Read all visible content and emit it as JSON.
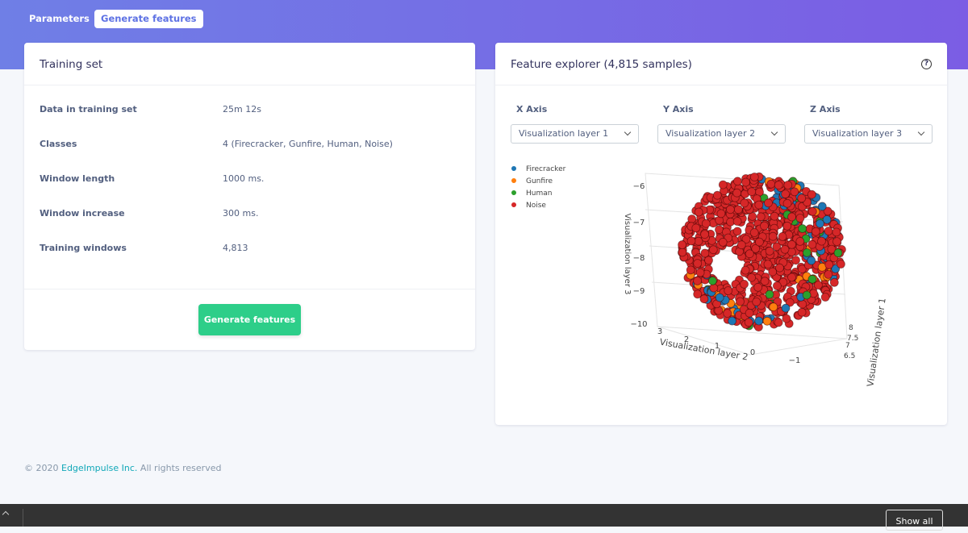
{
  "tabs": [
    "Parameters",
    "Generate features"
  ],
  "training_set": {
    "title": "Training set",
    "rows": [
      [
        "Data in training set",
        "25m 12s"
      ],
      [
        "Classes",
        "4 (Firecracker, Gunfire, Human, Noise)"
      ],
      [
        "Window length",
        "1000 ms."
      ],
      [
        "Window increase",
        "300 ms."
      ],
      [
        "Training windows",
        "4,813"
      ]
    ],
    "button": "Generate features"
  },
  "feature_explorer": {
    "title": "Feature explorer (4,815 samples)",
    "help": "?",
    "axes": [
      {
        "label": "X Axis",
        "selected": "Visualization layer 1"
      },
      {
        "label": "Y Axis",
        "selected": "Visualization layer 2"
      },
      {
        "label": "Z Axis",
        "selected": "Visualization layer 3"
      }
    ],
    "legend": [
      {
        "name": "Firecracker",
        "color": "#1f77b4"
      },
      {
        "name": "Gunfire",
        "color": "#ff7f0e"
      },
      {
        "name": "Human",
        "color": "#2ca02c"
      },
      {
        "name": "Noise",
        "color": "#d62728"
      }
    ],
    "plot": {
      "z_axis_title": "Visualization layer 3",
      "z_ticks": [
        "−6",
        "−7",
        "−8",
        "−9",
        "−10"
      ],
      "y_axis_title": "Visualization layer 2",
      "y_ticks": [
        "3",
        "2",
        "1",
        "0",
        "−1"
      ],
      "x_axis_title": "Visualization layer 1",
      "x_ticks": [
        "8",
        "7.5",
        "7",
        "6.5"
      ]
    }
  },
  "footer": {
    "copyright": "© 2020",
    "company": "EdgeImpulse Inc.",
    "rights": "All rights reserved"
  },
  "download_bar": {
    "button": "Show all"
  }
}
